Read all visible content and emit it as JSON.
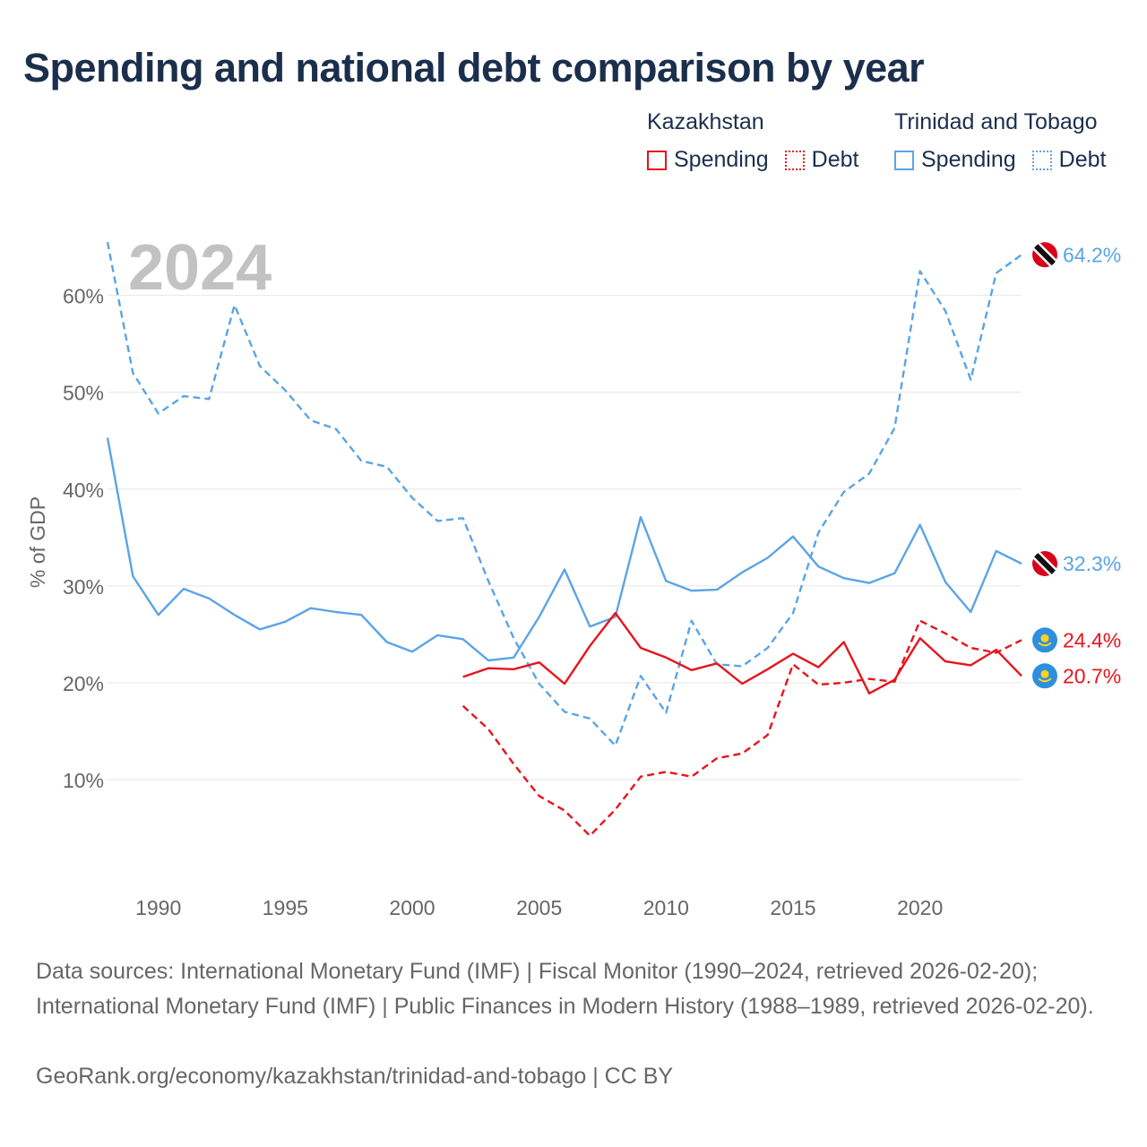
{
  "title": "Spending and national debt comparison by year",
  "legend": {
    "groups": [
      {
        "country": "Kazakhstan",
        "color": "#e8141b",
        "items": [
          {
            "label": "Spending",
            "style": "solid"
          },
          {
            "label": "Debt",
            "style": "dotted"
          }
        ]
      },
      {
        "country": "Trinidad and Tobago",
        "color": "#5ba4e6",
        "items": [
          {
            "label": "Spending",
            "style": "solid"
          },
          {
            "label": "Debt",
            "style": "dotted"
          }
        ]
      }
    ]
  },
  "footer": {
    "sources": "Data sources: International Monetary Fund (IMF) | Fiscal Monitor (1990–2024, retrieved 2026-02-20); International Monetary Fund (IMF) | Public Finances in Modern History (1988–1989, retrieved 2026-02-20).",
    "credit": "GeoRank.org/economy/kazakhstan/trinidad-and-tobago | CC BY"
  },
  "chart_data": {
    "type": "line",
    "year_label": "2024",
    "ylabel": "% of GDP",
    "xlim": [
      1988,
      2024
    ],
    "ylim": [
      0,
      67
    ],
    "x_ticks": [
      1990,
      1995,
      2000,
      2005,
      2010,
      2015,
      2020
    ],
    "y_ticks": [
      10,
      20,
      30,
      40,
      50,
      60
    ],
    "y_tick_labels": [
      "10%",
      "20%",
      "30%",
      "40%",
      "50%",
      "60%"
    ],
    "series": [
      {
        "name": "Trinidad and Tobago Debt",
        "country": "Trinidad and Tobago",
        "kind": "debt",
        "color": "#5ba4e6",
        "dash": "dashed",
        "end_label": "64.2%",
        "x": [
          1988,
          1989,
          1990,
          1991,
          1992,
          1993,
          1994,
          1995,
          1996,
          1997,
          1998,
          1999,
          2000,
          2001,
          2002,
          2003,
          2004,
          2005,
          2006,
          2007,
          2008,
          2009,
          2010,
          2011,
          2012,
          2013,
          2014,
          2015,
          2016,
          2017,
          2018,
          2019,
          2020,
          2021,
          2022,
          2023,
          2024
        ],
        "values": [
          65.5,
          52.0,
          47.8,
          49.6,
          49.3,
          59.0,
          52.7,
          50.2,
          47.1,
          46.2,
          42.9,
          42.3,
          39.1,
          36.7,
          37.0,
          30.5,
          24.6,
          19.9,
          17.0,
          16.3,
          13.5,
          20.7,
          16.9,
          26.4,
          21.9,
          21.7,
          23.6,
          27.2,
          35.5,
          39.7,
          41.6,
          46.3,
          62.5,
          58.4,
          51.3,
          62.3,
          64.2
        ]
      },
      {
        "name": "Trinidad and Tobago Spending",
        "country": "Trinidad and Tobago",
        "kind": "spending",
        "color": "#5ba4e6",
        "dash": "solid",
        "end_label": "32.3%",
        "x": [
          1988,
          1989,
          1990,
          1991,
          1992,
          1993,
          1994,
          1995,
          1996,
          1997,
          1998,
          1999,
          2000,
          2001,
          2002,
          2003,
          2004,
          2005,
          2006,
          2007,
          2008,
          2009,
          2010,
          2011,
          2012,
          2013,
          2014,
          2015,
          2016,
          2017,
          2018,
          2019,
          2020,
          2021,
          2022,
          2023,
          2024
        ],
        "values": [
          45.3,
          31.0,
          27.0,
          29.7,
          28.7,
          27.0,
          25.5,
          26.3,
          27.7,
          27.3,
          27.0,
          24.2,
          23.2,
          24.9,
          24.5,
          22.3,
          22.6,
          26.8,
          31.7,
          25.8,
          26.8,
          37.1,
          30.5,
          29.5,
          29.6,
          31.4,
          32.9,
          35.1,
          32.0,
          30.8,
          30.3,
          31.3,
          36.3,
          30.4,
          27.3,
          33.6,
          32.3
        ]
      },
      {
        "name": "Kazakhstan Debt",
        "country": "Kazakhstan",
        "kind": "debt",
        "color": "#e8141b",
        "dash": "dashed",
        "end_label": "24.4%",
        "x": [
          2002,
          2003,
          2004,
          2005,
          2006,
          2007,
          2008,
          2009,
          2010,
          2011,
          2012,
          2013,
          2014,
          2015,
          2016,
          2017,
          2018,
          2019,
          2020,
          2021,
          2022,
          2023,
          2024
        ],
        "values": [
          17.6,
          15.2,
          11.6,
          8.3,
          6.8,
          4.2,
          6.9,
          10.3,
          10.8,
          10.3,
          12.2,
          12.7,
          14.6,
          21.9,
          19.8,
          20.0,
          20.4,
          20.1,
          26.4,
          25.1,
          23.6,
          23.1,
          24.4
        ]
      },
      {
        "name": "Kazakhstan Spending",
        "country": "Kazakhstan",
        "kind": "spending",
        "color": "#e8141b",
        "dash": "solid",
        "end_label": "20.7%",
        "x": [
          2002,
          2003,
          2004,
          2005,
          2006,
          2007,
          2008,
          2009,
          2010,
          2011,
          2012,
          2013,
          2014,
          2015,
          2016,
          2017,
          2018,
          2019,
          2020,
          2021,
          2022,
          2023,
          2024
        ],
        "values": [
          20.6,
          21.5,
          21.4,
          22.1,
          19.9,
          23.8,
          27.2,
          23.6,
          22.6,
          21.3,
          22.0,
          19.9,
          21.4,
          23.0,
          21.6,
          24.2,
          18.9,
          20.3,
          24.6,
          22.2,
          21.8,
          23.4,
          20.7
        ]
      }
    ]
  }
}
